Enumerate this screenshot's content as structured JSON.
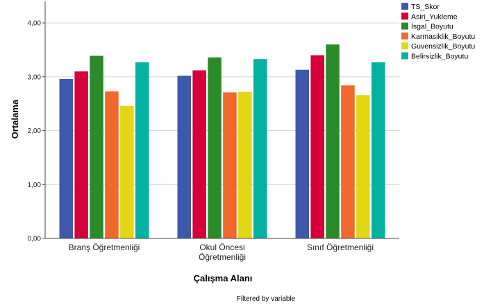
{
  "chart_data": {
    "type": "bar",
    "ylabel": "Ortalama",
    "xlabel": "Çalışma Alanı",
    "footer": "Filtered by  variable",
    "ylim": [
      0,
      4.4
    ],
    "yticks": [
      {
        "value": 0,
        "label": "0,00"
      },
      {
        "value": 1,
        "label": "1,00"
      },
      {
        "value": 2,
        "label": "2,00"
      },
      {
        "value": 3,
        "label": "3,00"
      },
      {
        "value": 4,
        "label": "4,00"
      }
    ],
    "grid": true,
    "legend_position": "top-right",
    "categories": [
      [
        "Branş Öğretmenliği"
      ],
      [
        "Okul Öncesi",
        "Öğretmenliği"
      ],
      [
        "Sınıf Öğretmenliği"
      ]
    ],
    "series": [
      {
        "name": "TS_Skor",
        "color": "#3e58ac",
        "values": [
          2.96,
          3.02,
          3.13
        ]
      },
      {
        "name": "Asiri_Yukleme",
        "color": "#d50138",
        "values": [
          3.1,
          3.12,
          3.4
        ]
      },
      {
        "name": "İsgal_Boyutu",
        "color": "#2b8b2a",
        "values": [
          3.39,
          3.36,
          3.6
        ]
      },
      {
        "name": "Karmasiklik_Boyutu",
        "color": "#f2672c",
        "values": [
          2.73,
          2.71,
          2.84
        ]
      },
      {
        "name": "Guvensizlik_Boyutu",
        "color": "#e3d713",
        "values": [
          2.46,
          2.72,
          2.66
        ]
      },
      {
        "name": "Belirsizlik_Boyutu",
        "color": "#05b1a0",
        "values": [
          3.27,
          3.33,
          3.27
        ]
      }
    ]
  }
}
